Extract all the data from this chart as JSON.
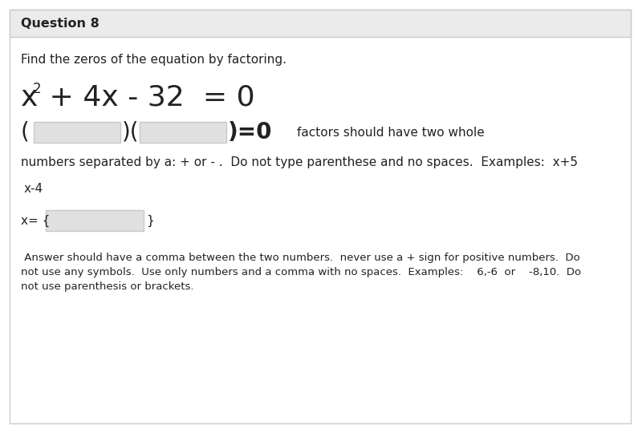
{
  "title": "Question 8",
  "title_bg": "#ebebeb",
  "bg_color": "#ffffff",
  "border_color": "#cccccc",
  "instruction": "Find the zeros of the equation by factoring.",
  "factor_hint": "factors should have two whole",
  "line2_text": "numbers separated by a: + or - .  Do not type parenthese and no spaces.  Examples:  x+5",
  "example_factor": "x-4",
  "answer_note_line1": " Answer should have a comma between the two numbers.  never use a + sign for positive numbers.  Do",
  "answer_note_line2": "not use any symbols.  Use only numbers and a comma with no spaces.  Examples:    6,-6  or    -8,10.  Do",
  "answer_note_line3": "not use parenthesis or brackets.",
  "input_box_color": "#e0e0e0",
  "input_box_border": "#c8c8c8",
  "font_color": "#222222",
  "small_font": 9.5,
  "medium_font": 11,
  "large_font": 26,
  "header_font": 11.5,
  "eq_superscript_font": 12
}
